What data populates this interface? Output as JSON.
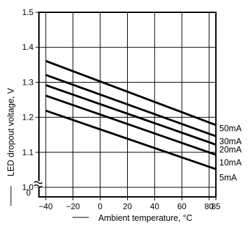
{
  "chart_data": {
    "type": "line",
    "xlabel": "Ambient temperature, °C",
    "ylabel": "LED dropout voltage, V",
    "xlim": [
      -45,
      85
    ],
    "ylim": [
      1.0,
      1.5
    ],
    "x_ticks": [
      -40,
      -20,
      0,
      20,
      40,
      60,
      80,
      85
    ],
    "x_tick_labels": [
      "−40",
      "−20",
      "0",
      "20",
      "40",
      "60",
      "80",
      "85"
    ],
    "y_ticks": [
      1.0,
      1.1,
      1.2,
      1.3,
      1.4,
      1.5
    ],
    "y_tick_labels": [
      "1.0",
      "1.1",
      "1.2",
      "1.3",
      "1.4",
      "1.5"
    ],
    "y_axis_break_label": "0",
    "grid": true,
    "series": [
      {
        "name": "50mA",
        "x": [
          -40,
          85
        ],
        "values": [
          1.361,
          1.178
        ]
      },
      {
        "name": "30mA",
        "x": [
          -40,
          85
        ],
        "values": [
          1.321,
          1.146
        ]
      },
      {
        "name": "20mA",
        "x": [
          -40,
          85
        ],
        "values": [
          1.292,
          1.122
        ]
      },
      {
        "name": "10mA",
        "x": [
          -40,
          85
        ],
        "values": [
          1.262,
          1.093
        ]
      },
      {
        "name": "5mA",
        "x": [
          -40,
          85
        ],
        "values": [
          1.219,
          1.052
        ]
      }
    ]
  }
}
